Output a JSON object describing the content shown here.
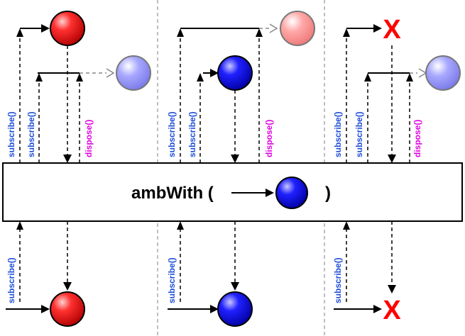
{
  "operator": {
    "open": "ambWith (",
    "close": ")"
  },
  "labels": {
    "subscribe": "subscribe()",
    "dispose": "dispose()",
    "error": "X"
  },
  "colors": {
    "subscribe_label": "#1d4ed8",
    "dispose_label": "#e000e0",
    "red_marble": "#ff2020",
    "blue_marble": "#1010ff",
    "faded_red_marble": "#ff9a9a",
    "faded_blue_marble": "#9c9cff",
    "error": "#ff0000",
    "divider": "#aaaaaa"
  },
  "scenarios": [
    {
      "source": "red-first",
      "winner_marble": "red",
      "loser_marble": "faded-blue",
      "result_marble": "red",
      "result_error": false
    },
    {
      "source": "blue-first",
      "winner_marble": "blue",
      "loser_marble": "faded-red",
      "result_marble": "blue",
      "result_error": false
    },
    {
      "source": "error-first",
      "winner_marble": "error",
      "loser_marble": "faded-blue",
      "result_marble": null,
      "result_error": true
    }
  ]
}
